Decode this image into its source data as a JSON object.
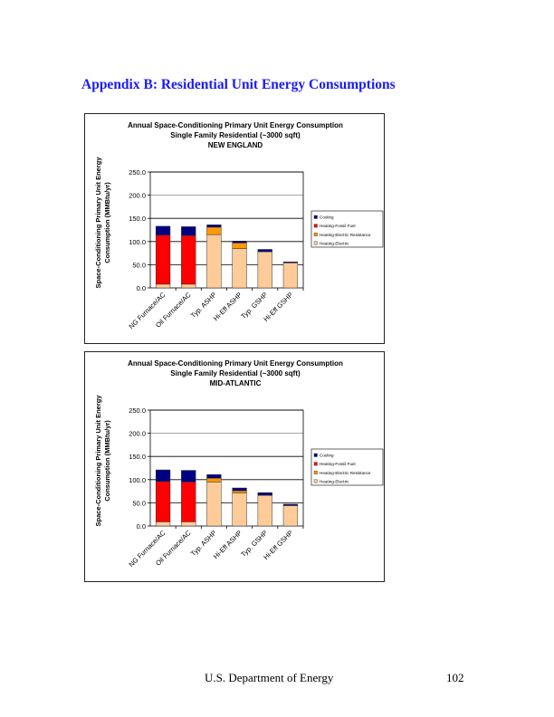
{
  "heading": "Appendix B:  Residential Unit Energy Consumptions",
  "footer": {
    "org": "U.S. Department of Energy",
    "page": "102"
  },
  "colors": {
    "Cooling": "#000080",
    "Heating-Fossil Fuel": "#ff0000",
    "Heating-Electric Resistance": "#ff9900",
    "Heating-Electric": "#ffcc99"
  },
  "chart_data": [
    {
      "type": "bar",
      "stacked": true,
      "title": [
        "Annual Space-Conditioning Primary Unit Energy Consumption",
        "Single Family Residential (~3000 sqft)",
        "NEW ENGLAND"
      ],
      "ylabel": [
        "Space-Conditioning Primary Unit Energy",
        "Consumption (MMBtu/yr)"
      ],
      "xlabel": "",
      "ylim": [
        0,
        250
      ],
      "yticks": [
        "0.0",
        "50.0",
        "100.0",
        "150.0",
        "200.0",
        "250.0"
      ],
      "grid": true,
      "legend": "right",
      "categories": [
        "NG Furnace/AC",
        "Oil Furnace/AC",
        "Typ. ASHP",
        "Hi-Eff ASHP",
        "Typ. GSHP",
        "Hi-Eff GSHP"
      ],
      "series": [
        {
          "name": "Heating-Electric",
          "values": [
            8,
            8,
            115,
            85,
            78,
            54
          ]
        },
        {
          "name": "Heating-Electric Resistance",
          "values": [
            0,
            0,
            16,
            12,
            0,
            0
          ]
        },
        {
          "name": "Heating-Fossil Fuel",
          "values": [
            106,
            105,
            0,
            0,
            0,
            0
          ]
        },
        {
          "name": "Cooling",
          "values": [
            19,
            19,
            5,
            4,
            5,
            2
          ]
        }
      ],
      "legend_order": [
        "Cooling",
        "Heating-Fossil Fuel",
        "Heating-Electric Resistance",
        "Heating-Electric"
      ]
    },
    {
      "type": "bar",
      "stacked": true,
      "title": [
        "Annual Space-Conditioning Primary Unit Energy Consumption",
        "Single Family Residential (~3000 sqft)",
        "MID-ATLANTIC"
      ],
      "ylabel": [
        "Space-Conditioning Primary Unit Energy",
        "Consumption (MMBtu/yr)"
      ],
      "xlabel": "",
      "ylim": [
        0,
        250
      ],
      "yticks": [
        "0.0",
        "50.0",
        "100.0",
        "150.0",
        "200.0",
        "250.0"
      ],
      "grid": true,
      "legend": "right",
      "categories": [
        "NG Furnace/AC",
        "Oil Furnace/AC",
        "Typ. ASHP",
        "Hi-Eff ASHP",
        "Typ. GSHP",
        "Hi-Eff GSHP"
      ],
      "series": [
        {
          "name": "Heating-Electric",
          "values": [
            9,
            9,
            95,
            71,
            66,
            44
          ]
        },
        {
          "name": "Heating-Electric Resistance",
          "values": [
            0,
            0,
            8,
            5,
            0,
            0
          ]
        },
        {
          "name": "Heating-Fossil Fuel",
          "values": [
            87,
            86,
            0,
            0,
            0,
            0
          ]
        },
        {
          "name": "Cooling",
          "values": [
            25,
            25,
            8,
            6,
            6,
            3
          ]
        }
      ],
      "legend_order": [
        "Cooling",
        "Heating-Fossil Fuel",
        "Heating-Electric Resistance",
        "Heating-Electric"
      ]
    }
  ]
}
